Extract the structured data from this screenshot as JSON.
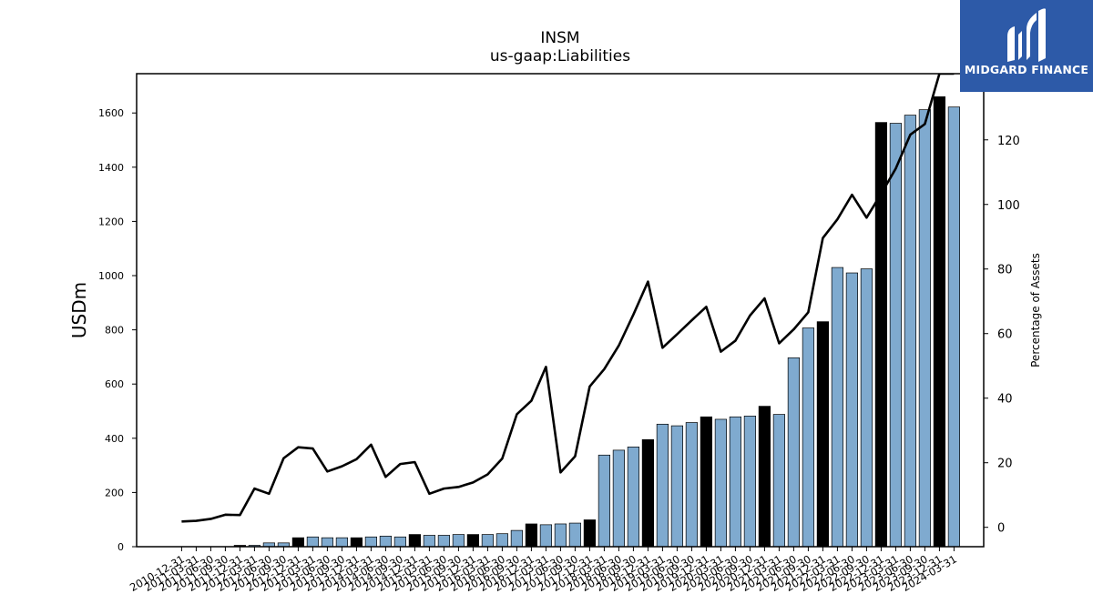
{
  "chart_data": {
    "type": "bar",
    "title": "INSM",
    "subtitle": "us-gaap:Liabilities",
    "ylabel": "USDm",
    "y2label": "Percentage of Assets",
    "ylim": [
      0,
      1745
    ],
    "y2lim": [
      -6,
      140.5
    ],
    "yticks": [
      0,
      200,
      400,
      600,
      800,
      1000,
      1200,
      1400,
      1600
    ],
    "y2ticks": [
      0,
      20,
      40,
      60,
      80,
      100,
      120
    ],
    "categories": [
      "2010-12-31",
      "2011-03-31",
      "2011-06-30",
      "2011-09-30",
      "2011-12-31",
      "2012-03-31",
      "2012-06-30",
      "2012-09-30",
      "2012-12-31",
      "2013-03-31",
      "2013-06-30",
      "2013-09-30",
      "2013-12-31",
      "2014-03-31",
      "2014-06-30",
      "2014-09-30",
      "2014-12-31",
      "2015-03-31",
      "2015-06-30",
      "2015-09-30",
      "2015-12-31",
      "2016-03-31",
      "2016-06-30",
      "2016-09-30",
      "2016-12-31",
      "2017-03-31",
      "2017-06-30",
      "2017-09-30",
      "2017-12-31",
      "2018-03-31",
      "2018-06-30",
      "2018-09-30",
      "2018-12-31",
      "2019-03-31",
      "2019-06-30",
      "2019-09-30",
      "2019-12-31",
      "2020-03-31",
      "2020-06-30",
      "2020-09-30",
      "2020-12-31",
      "2021-03-31",
      "2021-06-30",
      "2021-09-30",
      "2021-12-31",
      "2022-03-31",
      "2022-06-30",
      "2022-09-30",
      "2022-12-31",
      "2023-03-31",
      "2023-06-30",
      "2023-09-30",
      "2023-12-31",
      "2024-03-31"
    ],
    "series": [
      {
        "kind": "bar",
        "values": [
          0,
          0,
          0,
          0,
          5,
          5,
          14,
          14,
          33,
          36,
          33,
          33,
          33,
          36,
          39,
          36,
          45,
          42,
          42,
          45,
          45,
          45,
          48,
          60,
          84,
          81,
          84,
          87,
          99,
          338,
          356,
          368,
          395,
          452,
          446,
          458,
          479,
          470,
          479,
          482,
          518,
          488,
          697,
          807,
          830,
          1030,
          1010,
          1025,
          1565,
          1562,
          1592,
          1612,
          1660,
          1622
        ],
        "year_end_color": "#000000",
        "quarter_color": "#7faacf"
      },
      {
        "kind": "line",
        "axis": "right",
        "values": [
          1.8,
          2.0,
          2.6,
          3.9,
          3.8,
          12.0,
          10.4,
          21.4,
          24.8,
          24.4,
          17.3,
          18.9,
          21.1,
          25.6,
          15.6,
          19.6,
          20.2,
          10.4,
          12.0,
          12.5,
          13.9,
          16.4,
          21.3,
          35.0,
          39.2,
          49.7,
          17.0,
          22.0,
          43.6,
          49.0,
          56.3,
          65.9,
          76.1,
          55.6,
          59.8,
          64.1,
          68.3,
          54.4,
          57.8,
          65.6,
          70.9,
          57.0,
          61.3,
          66.6,
          89.6,
          95.4,
          103.0,
          95.9,
          103.3,
          111.1,
          121.6,
          124.9,
          140.5,
          140.5
        ],
        "color": "#000000"
      }
    ],
    "grid": false
  },
  "logo": {
    "text": "MIDGARD FINANCE",
    "color": "#2d5aa8"
  }
}
